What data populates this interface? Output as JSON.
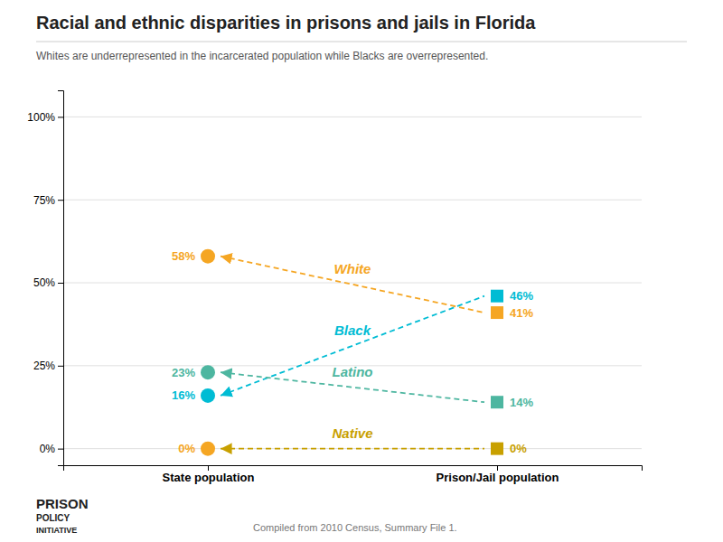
{
  "chart_data": {
    "type": "line",
    "title": "Racial and ethnic disparities in prisons and jails in Florida",
    "subtitle": "Whites are underrepresented in the incarcerated population while Blacks are overrepresented.",
    "annotations": [
      "Compiled from 2010 Census, Summary File 1.",
      "PRISON",
      "POLICY",
      "INITIATIVE"
    ],
    "categories": [
      "State population",
      "Prison/Jail population"
    ],
    "series": [
      {
        "name": "White",
        "color": "#f5a623",
        "values": [
          58,
          41
        ],
        "value_labels": [
          "58%",
          "41%"
        ]
      },
      {
        "name": "Black",
        "color": "#00bcd4",
        "values": [
          16,
          46
        ],
        "value_labels": [
          "16%",
          "46%"
        ]
      },
      {
        "name": "Latino",
        "color": "#4db6a0",
        "values": [
          23,
          14
        ],
        "value_labels": [
          "23%",
          "14%"
        ]
      },
      {
        "name": "Native",
        "color": "#c8a000",
        "colors": [
          "#f5a623",
          "#c8a000"
        ],
        "values": [
          0,
          0
        ],
        "value_labels": [
          "0%",
          "0%"
        ]
      }
    ],
    "ylim": [
      -5,
      108
    ],
    "yticks": [
      {
        "value": 0,
        "label": "0%"
      },
      {
        "value": 25,
        "label": "25%"
      },
      {
        "value": 50,
        "label": "50%"
      },
      {
        "value": 75,
        "label": "75%"
      },
      {
        "value": 100,
        "label": "100%"
      }
    ],
    "grid": true,
    "data_labels": true,
    "line_style": "dashed"
  }
}
